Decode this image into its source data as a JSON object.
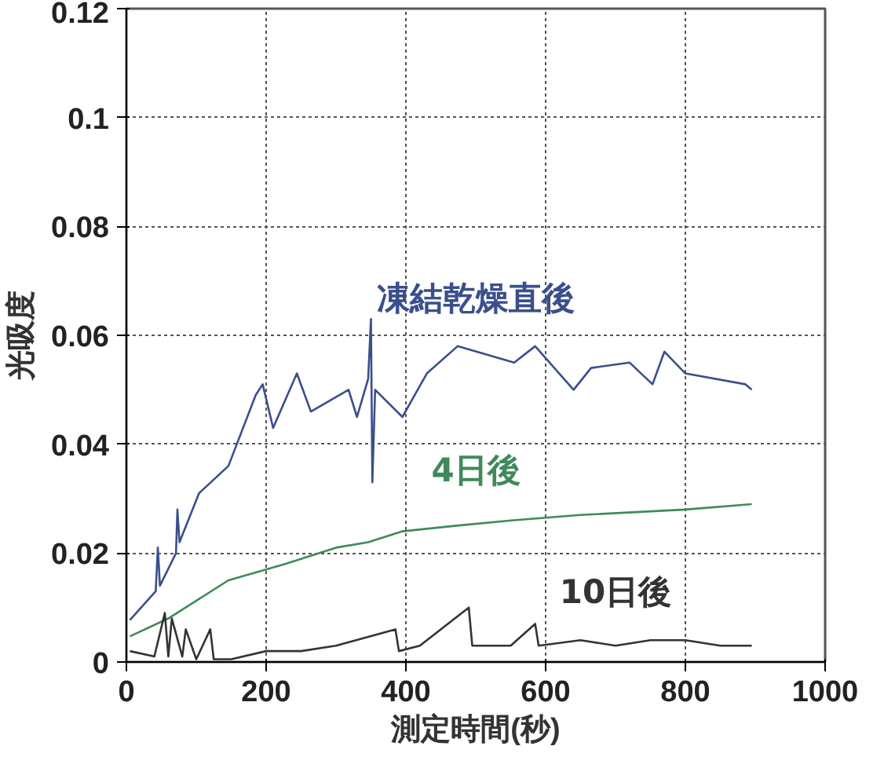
{
  "chart_data": {
    "type": "line",
    "xlabel": "測定時間(秒)",
    "ylabel": "光吸度",
    "xlim": [
      0,
      1000
    ],
    "ylim": [
      0,
      0.12
    ],
    "xticks": [
      0,
      200,
      400,
      600,
      800,
      1000
    ],
    "yticks": [
      0,
      0.02,
      0.04,
      0.06,
      0.08,
      0.1,
      0.12
    ],
    "grid": true,
    "line_style": "solid",
    "marker": "none",
    "series": [
      {
        "name": "凍結乾燥直後",
        "color": "#3a4f8c",
        "x": [
          5,
          42,
          45,
          48,
          71,
          73,
          76,
          104,
          146,
          185,
          195,
          210,
          244,
          264,
          318,
          330,
          346,
          350,
          352,
          356,
          395,
          430,
          474,
          555,
          585,
          640,
          665,
          720,
          753,
          770,
          800,
          886,
          895
        ],
        "values": [
          0.0077,
          0.013,
          0.021,
          0.014,
          0.02,
          0.028,
          0.022,
          0.031,
          0.036,
          0.049,
          0.051,
          0.043,
          0.053,
          0.046,
          0.05,
          0.045,
          0.052,
          0.063,
          0.033,
          0.05,
          0.045,
          0.053,
          0.058,
          0.055,
          0.058,
          0.05,
          0.054,
          0.055,
          0.051,
          0.057,
          0.053,
          0.051,
          0.05
        ]
      },
      {
        "name": "4日後",
        "color": "#3f8a5a",
        "x": [
          5,
          60,
          146,
          227,
          300,
          346,
          395,
          470,
          551,
          650,
          800,
          895
        ],
        "values": [
          0.0047,
          0.008,
          0.015,
          0.018,
          0.021,
          0.022,
          0.024,
          0.025,
          0.026,
          0.027,
          0.028,
          0.029
        ]
      },
      {
        "name": "10日後",
        "color": "#333333",
        "x": [
          5,
          40,
          55,
          60,
          65,
          80,
          85,
          100,
          120,
          125,
          150,
          200,
          250,
          300,
          385,
          390,
          420,
          490,
          495,
          550,
          585,
          590,
          650,
          700,
          750,
          800,
          850,
          895
        ],
        "values": [
          0.002,
          0.001,
          0.009,
          0.001,
          0.008,
          0.001,
          0.006,
          0.0005,
          0.006,
          0.0005,
          0.0005,
          0.002,
          0.002,
          0.003,
          0.006,
          0.002,
          0.003,
          0.01,
          0.003,
          0.003,
          0.007,
          0.003,
          0.004,
          0.003,
          0.004,
          0.004,
          0.003,
          0.003
        ]
      }
    ]
  }
}
